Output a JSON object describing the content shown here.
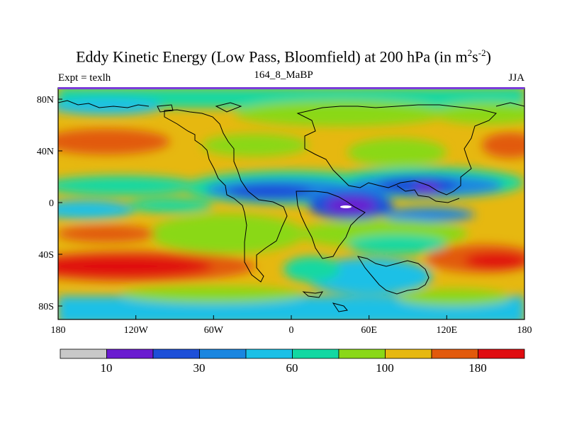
{
  "header": {
    "title_main": "Eddy Kinetic Energy (Low Pass, Bloomfield) at 200 hPa (in m",
    "title_sup1": "2",
    "title_mid": "s",
    "title_sup2": "-2",
    "title_end": ")",
    "expt": "Expt = texlh",
    "subtitle": "164_8_MaBP",
    "season": "JJA"
  },
  "axes": {
    "x_ticks": [
      "180",
      "120W",
      "60W",
      "0",
      "60E",
      "120E",
      "180"
    ],
    "y_ticks": [
      "80N",
      "40N",
      "0",
      "40S",
      "80S"
    ]
  },
  "colorbar": {
    "colors": [
      "#c8c8c8",
      "#6a1bd0",
      "#1d4fd8",
      "#1a86e0",
      "#1ac0e6",
      "#12d8a2",
      "#8ad818",
      "#e6b810",
      "#e25a0c",
      "#e00c10"
    ],
    "labels": [
      "10",
      "30",
      "60",
      "100",
      "180"
    ]
  },
  "palette": {
    "grey": "#c8c8c8",
    "purple": "#6a1bd0",
    "blue": "#1d4fd8",
    "mid_blue": "#1a86e0",
    "cyan": "#1ac0e6",
    "teal": "#12d8a2",
    "green": "#8ad818",
    "yellow": "#e6b810",
    "orange": "#e25a0c",
    "red": "#e00c10",
    "frame_top": "#7a3cd8"
  }
}
